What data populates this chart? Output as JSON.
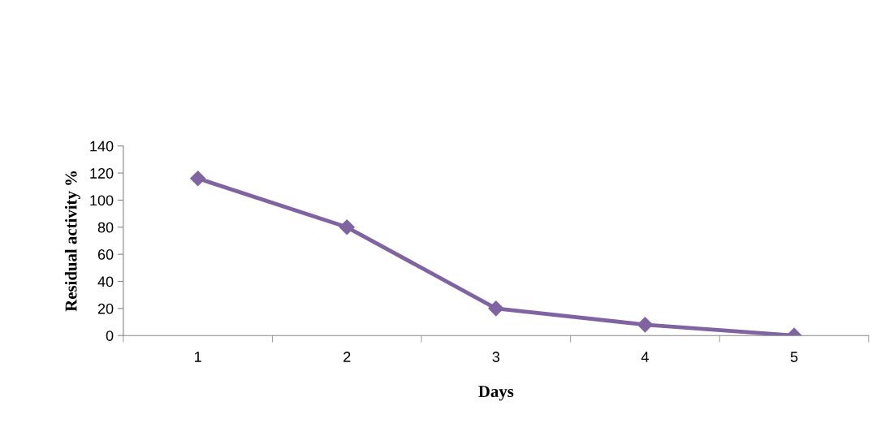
{
  "chart_data": {
    "type": "line",
    "xlabel": "Days",
    "ylabel": "Residual activity %",
    "categories": [
      "1",
      "2",
      "3",
      "4",
      "5"
    ],
    "series": [
      {
        "color": "#8064a2",
        "values": [
          116,
          80,
          20,
          8,
          0
        ]
      }
    ],
    "ylim": [
      0,
      140
    ],
    "yticks": [
      0,
      20,
      40,
      60,
      80,
      100,
      120,
      140
    ],
    "marker": "diamond",
    "line_style": "solid",
    "grid": false,
    "legend": false
  }
}
